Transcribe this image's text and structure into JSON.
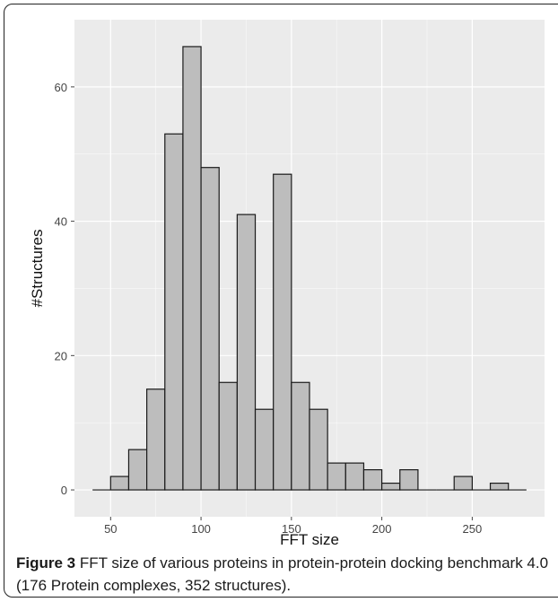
{
  "chart_data": {
    "type": "bar",
    "xlabel": "FFT size",
    "ylabel": "#Structures",
    "xlim": [
      30,
      290
    ],
    "ylim": [
      -4,
      70
    ],
    "x_ticks": [
      50,
      100,
      150,
      200,
      250
    ],
    "y_ticks": [
      0,
      20,
      40,
      60
    ],
    "bin_width": 10,
    "bins": [
      {
        "x0": 40,
        "x1": 50,
        "count": 0
      },
      {
        "x0": 50,
        "x1": 60,
        "count": 2
      },
      {
        "x0": 60,
        "x1": 70,
        "count": 6
      },
      {
        "x0": 70,
        "x1": 80,
        "count": 15
      },
      {
        "x0": 80,
        "x1": 90,
        "count": 53
      },
      {
        "x0": 90,
        "x1": 100,
        "count": 66
      },
      {
        "x0": 100,
        "x1": 110,
        "count": 48
      },
      {
        "x0": 110,
        "x1": 120,
        "count": 16
      },
      {
        "x0": 120,
        "x1": 130,
        "count": 41
      },
      {
        "x0": 130,
        "x1": 140,
        "count": 12
      },
      {
        "x0": 140,
        "x1": 150,
        "count": 47
      },
      {
        "x0": 150,
        "x1": 160,
        "count": 16
      },
      {
        "x0": 160,
        "x1": 170,
        "count": 12
      },
      {
        "x0": 170,
        "x1": 180,
        "count": 4
      },
      {
        "x0": 180,
        "x1": 190,
        "count": 4
      },
      {
        "x0": 190,
        "x1": 200,
        "count": 3
      },
      {
        "x0": 200,
        "x1": 210,
        "count": 1
      },
      {
        "x0": 210,
        "x1": 220,
        "count": 3
      },
      {
        "x0": 220,
        "x1": 230,
        "count": 0
      },
      {
        "x0": 230,
        "x1": 240,
        "count": 0
      },
      {
        "x0": 240,
        "x1": 250,
        "count": 2
      },
      {
        "x0": 250,
        "x1": 260,
        "count": 0
      },
      {
        "x0": 260,
        "x1": 270,
        "count": 1
      },
      {
        "x0": 270,
        "x1": 280,
        "count": 0
      }
    ],
    "grid": true,
    "colors": {
      "panel": "#ebebeb",
      "grid": "#ffffff",
      "bar_fill": "#bdbdbd",
      "bar_stroke": "#1a1a1a"
    }
  },
  "caption": {
    "label": "Figure 3",
    "text": " FFT size of various proteins in protein-protein docking benchmark 4.0 (176 Protein complexes, 352 structures)."
  }
}
